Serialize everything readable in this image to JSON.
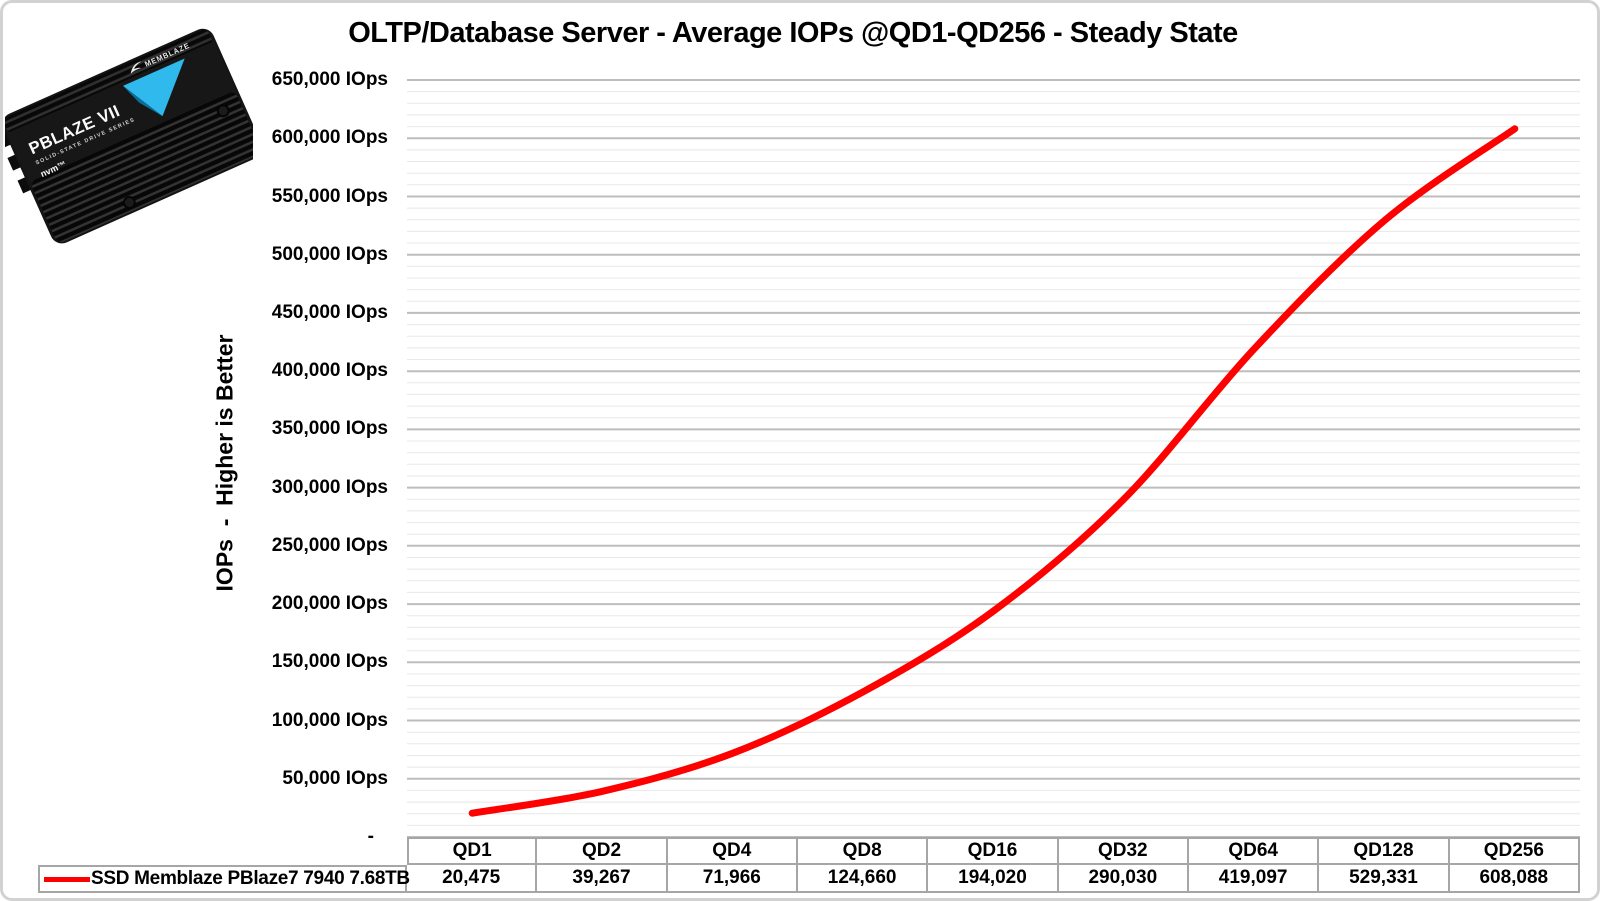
{
  "chart_title": "OLTP/Database Server - Average IOPs @QD1-QD256 - Steady State",
  "y_axis_title": "IOPs  -  Higher is Better",
  "colors": {
    "series_red": "#fe0000",
    "grid_major": "#bdbdbd",
    "grid_minor": "#e8e8e8",
    "table_border": "#a6a6a6",
    "frame_border": "#d2d2d2",
    "drive_blue": "#2fb9ec",
    "drive_blue_dark": "#0b6f9e"
  },
  "product_badge": {
    "brand": "MEMBLAZE",
    "model": "PBLAZE VII",
    "series_line": "SOLID-STATE DRIVE SERIES",
    "interface_logo": "nvm™"
  },
  "y_ticks": [
    {
      "label": "650,000 IOps",
      "value": 650000
    },
    {
      "label": "600,000 IOps",
      "value": 600000
    },
    {
      "label": "550,000 IOps",
      "value": 550000
    },
    {
      "label": "500,000 IOps",
      "value": 500000
    },
    {
      "label": "450,000 IOps",
      "value": 450000
    },
    {
      "label": "400,000 IOps",
      "value": 400000
    },
    {
      "label": "350,000 IOps",
      "value": 350000
    },
    {
      "label": "300,000 IOps",
      "value": 300000
    },
    {
      "label": "250,000 IOps",
      "value": 250000
    },
    {
      "label": "200,000 IOps",
      "value": 200000
    },
    {
      "label": "150,000 IOps",
      "value": 150000
    },
    {
      "label": "100,000 IOps",
      "value": 100000
    },
    {
      "label": "50,000 IOps",
      "value": 50000
    },
    {
      "label": "-",
      "value": 0
    }
  ],
  "chart_data": {
    "type": "line",
    "title": "OLTP/Database Server - Average IOPs @QD1-QD256 - Steady State",
    "xlabel": "",
    "ylabel": "IOPs  -  Higher is Better",
    "categories": [
      "QD1",
      "QD2",
      "QD4",
      "QD8",
      "QD16",
      "QD32",
      "QD64",
      "QD128",
      "QD256"
    ],
    "series": [
      {
        "name": "SSD Memblaze PBlaze7 7940 7.68TB",
        "color": "#fe0000",
        "values": [
          20475,
          39267,
          71966,
          124660,
          194020,
          290030,
          419097,
          529331,
          608088
        ],
        "values_formatted": [
          "20,475",
          "39,267",
          "71,966",
          "124,660",
          "194,020",
          "290,030",
          "419,097",
          "529,331",
          "608,088"
        ]
      }
    ],
    "ylim": [
      0,
      650000
    ],
    "y_major_step": 50000,
    "y_minor_step": 10000,
    "y_tick_suffix": " IOps",
    "zero_tick_label": "-",
    "grid": true,
    "smooth_line": true,
    "legend_position": "bottom data table"
  }
}
